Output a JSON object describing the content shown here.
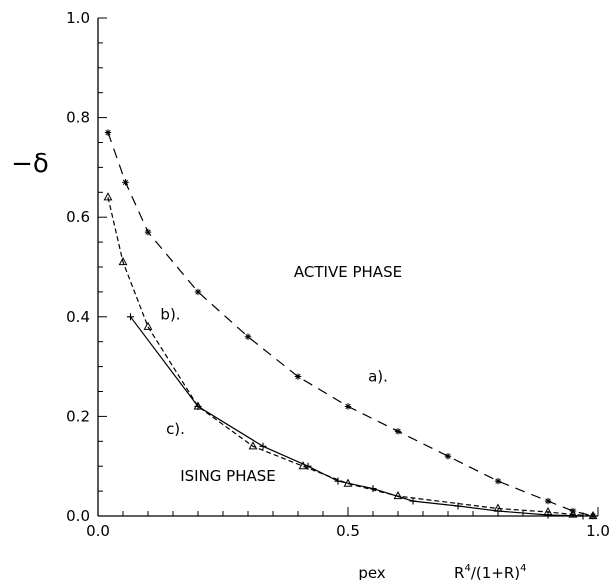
{
  "chart_data": {
    "type": "line",
    "title": "",
    "xlabel": "pex",
    "xlabel_extra": {
      "base": "R",
      "exp1": "4",
      "mid": "/(1+R)",
      "exp2": "4"
    },
    "ylabel": "−δ",
    "xlim": [
      0,
      1
    ],
    "ylim": [
      0,
      1
    ],
    "x_ticks": [
      0.0,
      0.5,
      1.0
    ],
    "x_tick_labels": [
      "0.0",
      "0.5",
      "1.0"
    ],
    "y_ticks": [
      0.0,
      0.2,
      0.4,
      0.6,
      0.8,
      1.0
    ],
    "y_tick_labels": [
      "0.0",
      "0.2",
      "0.4",
      "0.6",
      "0.8",
      "1.0"
    ],
    "grid": false,
    "annotations": [
      {
        "text": "ACTIVE PHASE",
        "x": 0.5,
        "y": 0.48
      },
      {
        "text": "ISING PHASE",
        "x": 0.26,
        "y": 0.07
      },
      {
        "text": "a).",
        "x": 0.56,
        "y": 0.27
      },
      {
        "text": "b).",
        "x": 0.145,
        "y": 0.395
      },
      {
        "text": "c).",
        "x": 0.155,
        "y": 0.165
      }
    ],
    "series": [
      {
        "marker": "star",
        "dash": "10,7",
        "points": [
          [
            0.02,
            0.77
          ],
          [
            0.055,
            0.67
          ],
          [
            0.1,
            0.57
          ],
          [
            0.2,
            0.45
          ],
          [
            0.3,
            0.36
          ],
          [
            0.4,
            0.28
          ],
          [
            0.5,
            0.22
          ],
          [
            0.6,
            0.17
          ],
          [
            0.7,
            0.12
          ],
          [
            0.8,
            0.07
          ],
          [
            0.9,
            0.03
          ],
          [
            0.95,
            0.01
          ],
          [
            0.99,
            0.0
          ]
        ]
      },
      {
        "marker": "triangle",
        "dash": "5,3",
        "points": [
          [
            0.02,
            0.64
          ],
          [
            0.05,
            0.51
          ],
          [
            0.1,
            0.38
          ],
          [
            0.2,
            0.22
          ],
          [
            0.31,
            0.14
          ],
          [
            0.41,
            0.1
          ],
          [
            0.5,
            0.065
          ],
          [
            0.6,
            0.04
          ],
          [
            0.8,
            0.015
          ],
          [
            0.9,
            0.008
          ],
          [
            0.95,
            0.003
          ],
          [
            0.99,
            0.0
          ]
        ]
      },
      {
        "marker": "plus",
        "dash": "",
        "points": [
          [
            0.065,
            0.4
          ],
          [
            0.2,
            0.22
          ],
          [
            0.33,
            0.14
          ],
          [
            0.42,
            0.1
          ],
          [
            0.48,
            0.07
          ],
          [
            0.55,
            0.055
          ],
          [
            0.63,
            0.03
          ],
          [
            0.72,
            0.02
          ],
          [
            0.8,
            0.01
          ],
          [
            0.9,
            0.002
          ],
          [
            0.97,
            0.0
          ]
        ]
      }
    ]
  }
}
